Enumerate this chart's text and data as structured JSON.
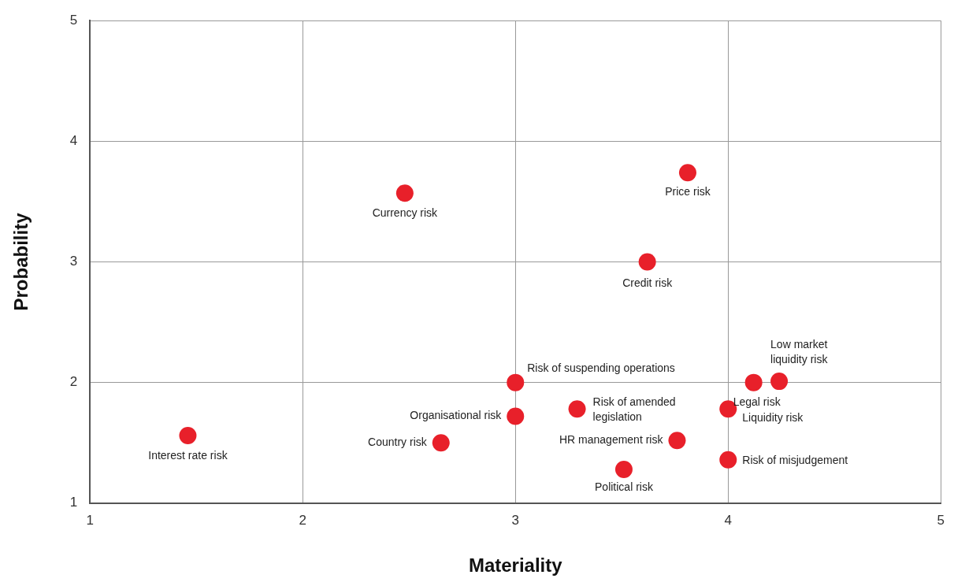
{
  "chart_data": {
    "type": "scatter",
    "xlabel": "Materiality",
    "ylabel": "Probability",
    "xlim": [
      1,
      5
    ],
    "ylim": [
      1,
      5
    ],
    "xticks": [
      1,
      2,
      3,
      4,
      5
    ],
    "yticks": [
      1,
      2,
      3,
      4,
      5
    ],
    "grid": true,
    "legend": false,
    "marker": "circle",
    "series": [
      {
        "color": "#e8202a",
        "x": [
          1.46,
          2.48,
          2.65,
          3.0,
          3.0,
          3.29,
          3.51,
          3.76,
          3.62,
          3.81,
          4.0,
          4.0,
          4.12,
          4.24
        ],
        "values": [
          1.56,
          3.57,
          1.5,
          2.0,
          1.72,
          1.78,
          1.28,
          1.52,
          3.0,
          3.74,
          1.78,
          1.36,
          2.0,
          2.01
        ]
      }
    ],
    "annotations": [
      {
        "text": "Interest rate risk",
        "x": 1.46,
        "y": 1.56
      },
      {
        "text": "Currency risk",
        "x": 2.48,
        "y": 3.57
      },
      {
        "text": "Country risk",
        "x": 2.65,
        "y": 1.5
      },
      {
        "text": "Risk of suspending operations",
        "x": 3.0,
        "y": 2.0
      },
      {
        "text": "Organisational risk",
        "x": 3.0,
        "y": 1.72
      },
      {
        "text": "Risk of amended\nlegislation",
        "x": 3.29,
        "y": 1.78
      },
      {
        "text": "Political risk",
        "x": 3.51,
        "y": 1.28
      },
      {
        "text": "HR management risk",
        "x": 3.76,
        "y": 1.52
      },
      {
        "text": "Credit risk",
        "x": 3.62,
        "y": 3.0
      },
      {
        "text": "Price risk",
        "x": 3.81,
        "y": 3.74
      },
      {
        "text": "Liquidity risk",
        "x": 4.0,
        "y": 1.78
      },
      {
        "text": "Risk of misjudgement",
        "x": 4.0,
        "y": 1.36
      },
      {
        "text": "Legal risk",
        "x": 4.12,
        "y": 2.0
      },
      {
        "text": "Low market\nliquidity risk",
        "x": 4.24,
        "y": 2.01
      }
    ]
  }
}
